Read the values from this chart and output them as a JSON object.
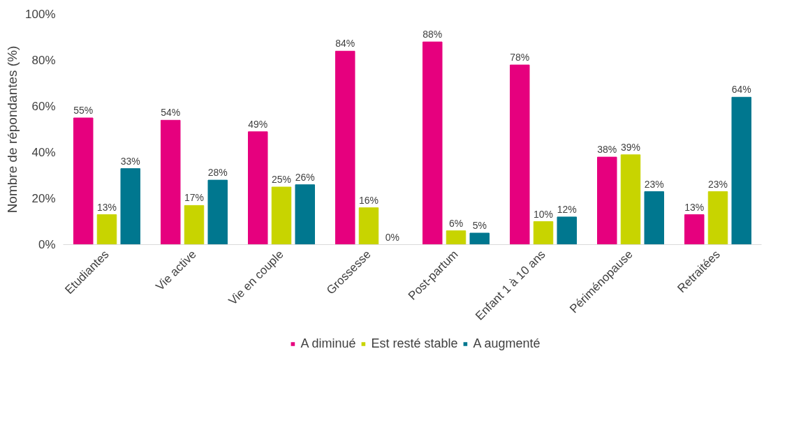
{
  "chart_data": {
    "type": "bar",
    "ylabel": "Nombre de répondantes (%)",
    "categories": [
      "Etudiantes",
      "Vie active",
      "Vie en couple",
      "Grossesse",
      "Post-partum",
      "Enfant 1 à 10 ans",
      "Périménopause",
      "Retraitées"
    ],
    "series": [
      {
        "name": "A diminué",
        "color": "#e6007e",
        "values": [
          55,
          54,
          49,
          84,
          88,
          78,
          38,
          13
        ],
        "value_labels": [
          "55%",
          "54%",
          "49%",
          "84%",
          "88%",
          "78%",
          "38%",
          "13%"
        ]
      },
      {
        "name": "Est resté stable",
        "color": "#c8d400",
        "values": [
          13,
          17,
          25,
          16,
          6,
          10,
          39,
          23
        ],
        "value_labels": [
          "13%",
          "17%",
          "25%",
          "16%",
          "6%",
          "10%",
          "39%",
          "23%"
        ]
      },
      {
        "name": "A augmenté",
        "color": "#00778f",
        "values": [
          33,
          28,
          26,
          0,
          5,
          12,
          23,
          64
        ],
        "value_labels": [
          "33%",
          "28%",
          "26%",
          "0%",
          "5%",
          "12%",
          "23%",
          "64%"
        ]
      }
    ],
    "ylim": [
      0,
      100
    ],
    "yticks": [
      {
        "value": 0,
        "label": "0%"
      },
      {
        "value": 20,
        "label": "20%"
      },
      {
        "value": 40,
        "label": "40%"
      },
      {
        "value": 60,
        "label": "60%"
      },
      {
        "value": 80,
        "label": "80%"
      },
      {
        "value": 100,
        "label": "100%"
      }
    ],
    "grid": false,
    "legend": "bottom"
  }
}
